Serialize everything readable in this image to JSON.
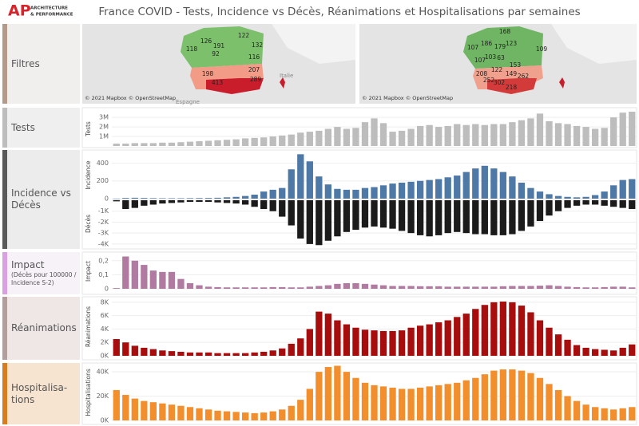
{
  "header": {
    "title": "France COVID - Tests, Incidence vs Décès, Réanimations et Hospitalisations par semaines",
    "logo": "AP",
    "brand_lines": [
      "ARCHITECTURE",
      "& PERFORMANCE"
    ]
  },
  "sidebar": {
    "filters": "Filtres",
    "tests": "Tests",
    "incidence": "Incidence vs Décès",
    "impact": "Impact",
    "impact_note": "(Décès pour 100000 / Incidence S-2)",
    "reanimations": "Réanimations",
    "hospitalisations": [
      "Hospitalisa-",
      "tions"
    ]
  },
  "maps": [
    {
      "credit": "© 2021 Mapbox © OpenStreetMap",
      "places": [
        "Italie",
        "Espagne"
      ],
      "labels": [
        "126",
        "122",
        "118",
        "191",
        "132",
        "92",
        "116",
        "198",
        "207",
        "413",
        "289"
      ]
    },
    {
      "credit": "© 2021 Mapbox © OpenStreetMap",
      "labels": [
        "168",
        "107",
        "186",
        "179",
        "123",
        "103",
        "63",
        "107",
        "109",
        "153",
        "122",
        "208",
        "149",
        "262",
        "252",
        "302",
        "218"
      ]
    }
  ],
  "chart_data": [
    {
      "type": "bar",
      "y_label": "Tests",
      "color": "#bdbdbd",
      "grid": true,
      "ylim": [
        0,
        3600000
      ],
      "yticks": [
        {
          "value": 1000000,
          "label": "1M"
        },
        {
          "value": 2000000,
          "label": "2M"
        },
        {
          "value": 3000000,
          "label": "3M"
        }
      ],
      "values": [
        250000,
        250000,
        300000,
        300000,
        300000,
        350000,
        350000,
        400000,
        450000,
        500000,
        550000,
        600000,
        650000,
        700000,
        800000,
        850000,
        900000,
        1000000,
        1100000,
        1200000,
        1400000,
        1500000,
        1600000,
        1800000,
        2000000,
        1800000,
        1900000,
        2500000,
        2900000,
        2400000,
        1500000,
        1600000,
        1800000,
        2100000,
        2200000,
        2000000,
        2100000,
        2300000,
        2200000,
        2300000,
        2200000,
        2300000,
        2300000,
        2500000,
        2700000,
        2900000,
        3400000,
        2600000,
        2400000,
        2300000,
        2100000,
        2000000,
        1800000,
        1900000,
        3000000,
        3500000,
        3600000
      ]
    },
    {
      "type": "bar",
      "y_label": "Incidence",
      "color": "#4e79a7",
      "grid": true,
      "ylim": [
        0,
        530
      ],
      "yticks": [
        0,
        200,
        400
      ],
      "values": [
        -5,
        8,
        10,
        8,
        6,
        5,
        5,
        5,
        6,
        7,
        8,
        10,
        15,
        20,
        30,
        45,
        80,
        100,
        120,
        330,
        500,
        420,
        250,
        160,
        110,
        100,
        100,
        120,
        130,
        150,
        170,
        180,
        190,
        200,
        210,
        220,
        240,
        260,
        300,
        340,
        370,
        340,
        300,
        250,
        180,
        120,
        80,
        50,
        30,
        20,
        15,
        20,
        40,
        80,
        150,
        210,
        220
      ]
    },
    {
      "type": "bar",
      "y_label": "Décès",
      "color": "#1b1b1b",
      "grid": true,
      "ylim": [
        -4300,
        0
      ],
      "yticks": [
        {
          "value": -1000,
          "label": "-1K"
        },
        {
          "value": -2000,
          "label": "-2K"
        },
        {
          "value": -3000,
          "label": "-3K"
        },
        {
          "value": -4000,
          "label": "-4K"
        }
      ],
      "values": [
        -100,
        -800,
        -700,
        -500,
        -400,
        -300,
        -250,
        -200,
        -150,
        -150,
        -150,
        -200,
        -250,
        -300,
        -400,
        -600,
        -800,
        -1000,
        -1500,
        -2300,
        -3500,
        -4000,
        -4100,
        -3700,
        -3300,
        -2900,
        -2700,
        -2500,
        -2400,
        -2500,
        -2600,
        -2800,
        -3000,
        -3200,
        -3300,
        -3200,
        -3000,
        -2900,
        -3000,
        -3100,
        -3100,
        -3200,
        -3200,
        -3100,
        -2800,
        -2400,
        -1900,
        -1400,
        -1000,
        -700,
        -500,
        -400,
        -400,
        -500,
        -600,
        -700,
        -800
      ]
    },
    {
      "type": "bar",
      "y_label": "Impact",
      "color": "#b07aa1",
      "grid": true,
      "ylim": [
        0,
        0.25
      ],
      "yticks": [
        0,
        {
          "value": 0.1,
          "label": "0,1"
        },
        {
          "value": 0.2,
          "label": "0,2"
        }
      ],
      "values": [
        0.005,
        0.23,
        0.2,
        0.17,
        0.13,
        0.12,
        0.12,
        0.07,
        0.04,
        0.025,
        0.015,
        0.012,
        0.01,
        0.01,
        0.01,
        0.01,
        0.01,
        0.012,
        0.012,
        0.01,
        0.01,
        0.015,
        0.02,
        0.025,
        0.035,
        0.04,
        0.04,
        0.035,
        0.03,
        0.025,
        0.02,
        0.02,
        0.02,
        0.018,
        0.018,
        0.018,
        0.015,
        0.015,
        0.015,
        0.015,
        0.015,
        0.015,
        0.018,
        0.02,
        0.02,
        0.02,
        0.022,
        0.025,
        0.02,
        0.015,
        0.012,
        0.01,
        0.01,
        0.012,
        0.015,
        0.015,
        0.01
      ]
    },
    {
      "type": "bar",
      "y_label": "Réanimations",
      "color": "#a80d0d",
      "grid": true,
      "ylim": [
        0,
        8700
      ],
      "yticks": [
        {
          "value": 0,
          "label": "0K"
        },
        {
          "value": 2000,
          "label": "2K"
        },
        {
          "value": 4000,
          "label": "4K"
        },
        {
          "value": 6000,
          "label": "6K"
        },
        {
          "value": 8000,
          "label": "8K"
        }
      ],
      "values": [
        2500,
        2000,
        1500,
        1200,
        1000,
        800,
        700,
        600,
        500,
        500,
        500,
        400,
        400,
        400,
        400,
        500,
        600,
        800,
        1100,
        1800,
        2600,
        4000,
        6600,
        6300,
        5300,
        4700,
        4200,
        3900,
        3800,
        3700,
        3700,
        3800,
        4200,
        4500,
        4700,
        5000,
        5300,
        5800,
        6300,
        7000,
        7600,
        8000,
        8100,
        8000,
        7500,
        6500,
        5300,
        4200,
        3200,
        2400,
        1600,
        1200,
        1000,
        900,
        800,
        1200,
        1700
      ]
    },
    {
      "type": "bar",
      "y_label": "Hospitalisations",
      "color": "#f28e2b",
      "grid": true,
      "ylim": [
        0,
        46000
      ],
      "yticks": [
        {
          "value": 0,
          "label": "0K"
        },
        {
          "value": 20000,
          "label": "20K"
        },
        {
          "value": 40000,
          "label": "40K"
        }
      ],
      "values": [
        25000,
        21000,
        18000,
        16000,
        15000,
        14000,
        13000,
        12000,
        11000,
        10000,
        9000,
        8000,
        7500,
        7000,
        6500,
        6000,
        6500,
        7500,
        9000,
        12000,
        17000,
        26000,
        40000,
        44000,
        45000,
        40000,
        35000,
        31000,
        29000,
        28000,
        27000,
        26000,
        26000,
        27000,
        28000,
        29000,
        30000,
        31000,
        33000,
        35000,
        38000,
        41000,
        42000,
        42000,
        41000,
        39000,
        35000,
        30000,
        25000,
        20000,
        16000,
        13000,
        11000,
        10000,
        9000,
        10000,
        11000
      ]
    }
  ]
}
